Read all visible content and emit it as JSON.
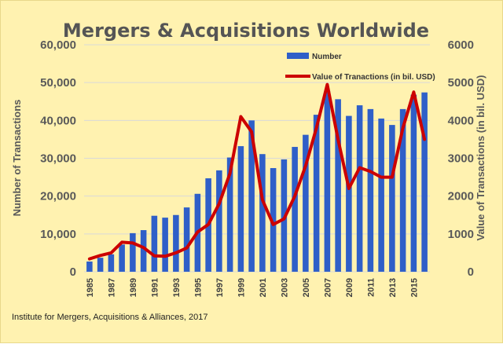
{
  "chart_data": {
    "type": "bar",
    "title": "Mergers & Acquisitions Worldwide",
    "ylabel": "Number of Transactions",
    "y2label": "Value of Transactions (in bil. USD)",
    "ylim": [
      0,
      60000
    ],
    "y2lim": [
      0,
      6000
    ],
    "y_ticks": [
      "0",
      "10,000",
      "20,000",
      "30,000",
      "40,000",
      "50,000",
      "60,000"
    ],
    "y2_ticks": [
      "0",
      "1000",
      "2000",
      "3000",
      "4000",
      "5000",
      "6000"
    ],
    "x_tick_labels": [
      "1985",
      "1987",
      "1989",
      "1991",
      "1993",
      "1995",
      "1997",
      "1999",
      "2001",
      "2003",
      "2005",
      "2007",
      "2009",
      "2011",
      "2013",
      "2015"
    ],
    "grid": true,
    "legend_position": "top-right",
    "categories": [
      "1985",
      "1986",
      "1987",
      "1988",
      "1989",
      "1990",
      "1991",
      "1992",
      "1993",
      "1994",
      "1995",
      "1996",
      "1997",
      "1998",
      "1999",
      "2000",
      "2001",
      "2002",
      "2003",
      "2004",
      "2005",
      "2006",
      "2007",
      "2008",
      "2009",
      "2010",
      "2011",
      "2012",
      "2013",
      "2014",
      "2015",
      "2016"
    ],
    "series": [
      {
        "name": "Number",
        "kind": "bar",
        "axis": "left",
        "color": "#2f5fc8",
        "values": [
          2700,
          3700,
          4600,
          7200,
          10200,
          11000,
          14800,
          14300,
          15000,
          17000,
          20600,
          24700,
          26800,
          30200,
          33200,
          40000,
          31100,
          27400,
          29700,
          33000,
          36200,
          41500,
          47800,
          45600,
          41200,
          44000,
          43000,
          40500,
          38800,
          43000,
          46800,
          47400
        ]
      },
      {
        "name": "Value of Tranactions (in bil. USD)",
        "kind": "line",
        "axis": "right",
        "color": "#cc0000",
        "values": [
          340,
          430,
          500,
          780,
          760,
          640,
          420,
          410,
          500,
          630,
          1050,
          1250,
          1800,
          2600,
          4100,
          3700,
          1900,
          1250,
          1400,
          2000,
          2800,
          3800,
          4950,
          3500,
          2200,
          2750,
          2650,
          2500,
          2500,
          3800,
          4750,
          3500
        ]
      }
    ]
  },
  "source": "Institute for Mergers, Acquisitions & Alliances, 2017"
}
